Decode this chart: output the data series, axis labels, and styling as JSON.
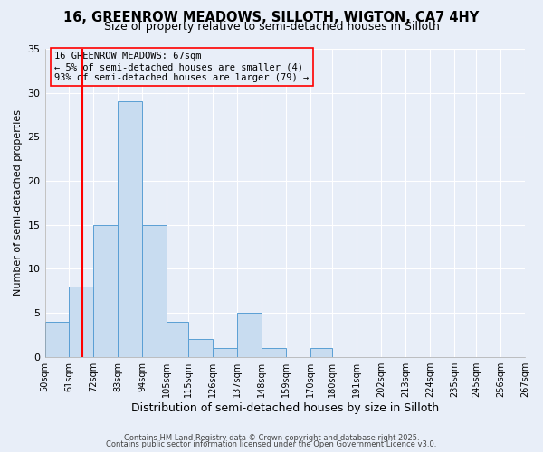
{
  "title": "16, GREENROW MEADOWS, SILLOTH, WIGTON, CA7 4HY",
  "subtitle": "Size of property relative to semi-detached houses in Silloth",
  "xlabel": "Distribution of semi-detached houses by size in Silloth",
  "ylabel": "Number of semi-detached properties",
  "bin_labels": [
    "50sqm",
    "61sqm",
    "72sqm",
    "83sqm",
    "94sqm",
    "105sqm",
    "115sqm",
    "126sqm",
    "137sqm",
    "148sqm",
    "159sqm",
    "170sqm",
    "180sqm",
    "191sqm",
    "202sqm",
    "213sqm",
    "224sqm",
    "235sqm",
    "245sqm",
    "256sqm",
    "267sqm"
  ],
  "bin_edges": [
    50,
    61,
    72,
    83,
    94,
    105,
    115,
    126,
    137,
    148,
    159,
    170,
    180,
    191,
    202,
    213,
    224,
    235,
    245,
    256,
    267
  ],
  "counts": [
    4,
    8,
    15,
    29,
    15,
    4,
    2,
    1,
    5,
    1,
    0,
    1,
    0,
    0,
    0,
    0,
    0,
    0,
    0,
    0,
    0
  ],
  "bar_color": "#c8dcf0",
  "bar_edge_color": "#5a9fd4",
  "red_line_x": 67,
  "annotation_title": "16 GREENROW MEADOWS: 67sqm",
  "annotation_line1": "← 5% of semi-detached houses are smaller (4)",
  "annotation_line2": "93% of semi-detached houses are larger (79) →",
  "ylim": [
    0,
    35
  ],
  "yticks": [
    0,
    5,
    10,
    15,
    20,
    25,
    30,
    35
  ],
  "footer1": "Contains HM Land Registry data © Crown copyright and database right 2025.",
  "footer2": "Contains public sector information licensed under the Open Government Licence v3.0.",
  "bg_color": "#e8eef8",
  "grid_color": "#ffffff",
  "title_fontsize": 10.5,
  "subtitle_fontsize": 9
}
